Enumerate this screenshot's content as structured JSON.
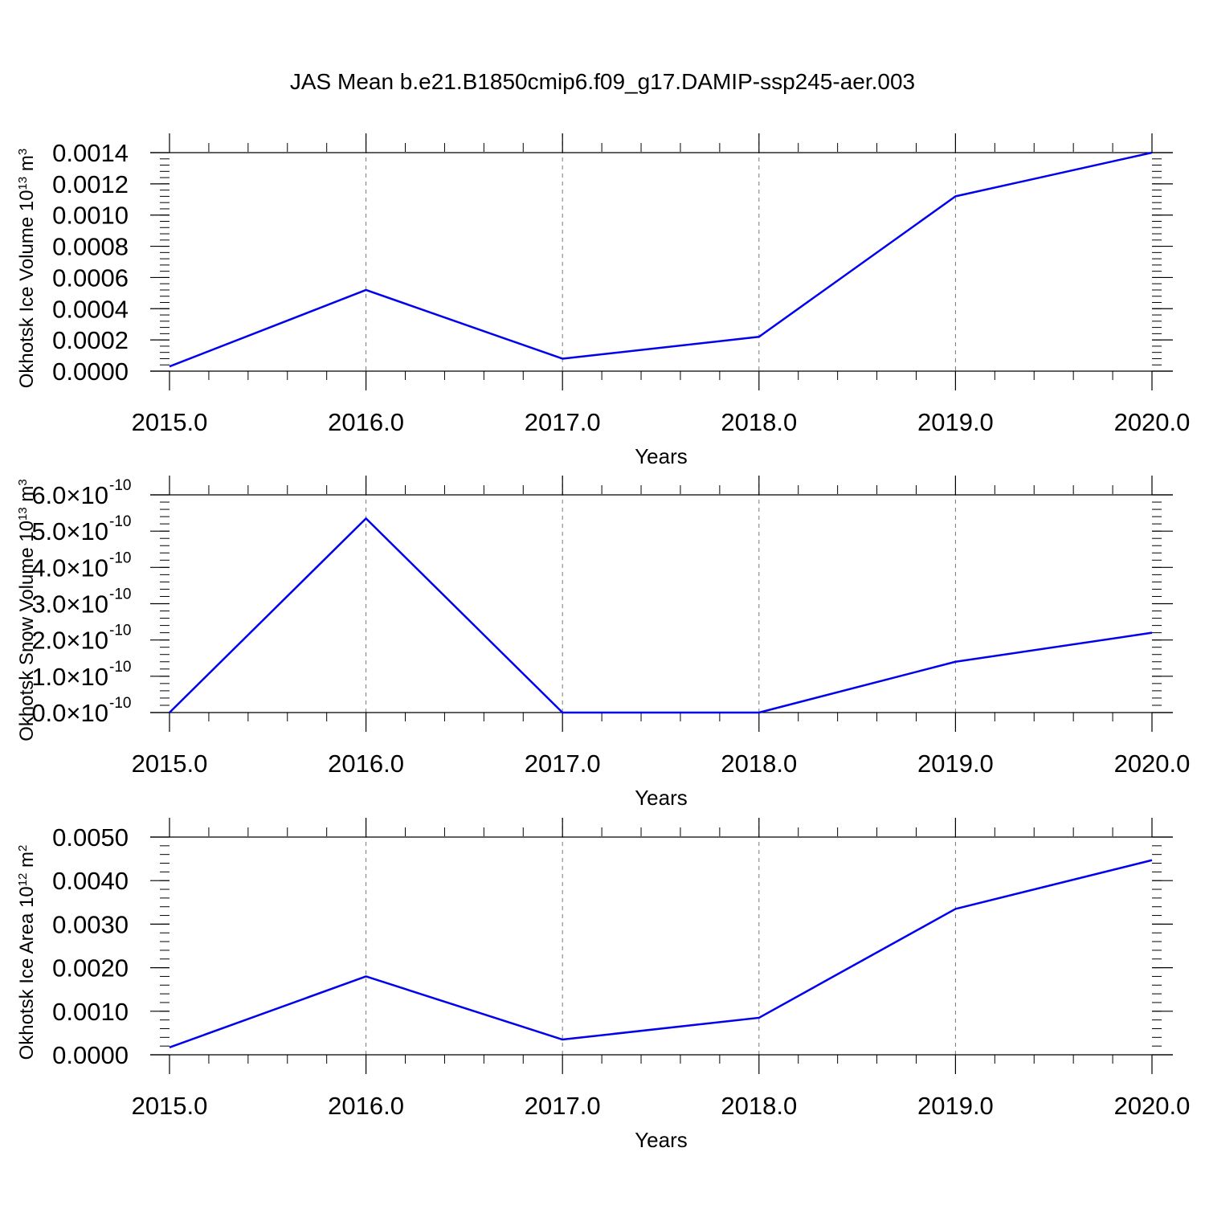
{
  "title": "JAS Mean b.e21.B1850cmip6.f09_g17.DAMIP-ssp245-aer.003",
  "chart_data": [
    {
      "type": "line",
      "xlabel": "Years",
      "ylabel": "Okhotsk Ice Volume 10",
      "ylabel_exp": "13",
      "ylabel_unit": " m",
      "ylabel_unit_exp": "3",
      "x": [
        2015,
        2016,
        2017,
        2018,
        2019,
        2020
      ],
      "x_tick_labels": [
        "2015.0",
        "2016.0",
        "2017.0",
        "2018.0",
        "2019.0",
        "2020.0"
      ],
      "y": [
        3e-05,
        0.00052,
        8e-05,
        0.00022,
        0.00112,
        0.0014
      ],
      "xlim": [
        2015,
        2020.1
      ],
      "ylim": [
        0,
        0.0014
      ],
      "y_ticks": [
        0,
        0.0002,
        0.0004,
        0.0006,
        0.0008,
        0.001,
        0.0012,
        0.0014
      ],
      "y_tick_labels": [
        "0.0000",
        "0.0002",
        "0.0004",
        "0.0006",
        "0.0008",
        "0.0010",
        "0.0012",
        "0.0014"
      ],
      "y_minor_step": 4e-05,
      "line_color": "#0000ee",
      "grid": "vertical dashed at years"
    },
    {
      "type": "line",
      "xlabel": "Years",
      "ylabel": "Okhotsk Snow Volume 10",
      "ylabel_exp": "13",
      "ylabel_unit": " m",
      "ylabel_unit_exp": "3",
      "x": [
        2015,
        2016,
        2017,
        2018,
        2019,
        2020
      ],
      "x_tick_labels": [
        "2015.0",
        "2016.0",
        "2017.0",
        "2018.0",
        "2019.0",
        "2020.0"
      ],
      "y": [
        0,
        5.35e-10,
        0,
        0,
        1.4e-10,
        2.2e-10
      ],
      "xlim": [
        2015,
        2020.1
      ],
      "ylim": [
        0,
        6e-10
      ],
      "y_ticks": [
        0,
        1e-10,
        2e-10,
        3e-10,
        4e-10,
        5e-10,
        6e-10
      ],
      "y_tick_labels": [
        "0.0",
        "1.0",
        "2.0",
        "3.0",
        "4.0",
        "5.0",
        "6.0"
      ],
      "y_tick_suffix": "×10",
      "y_tick_exp": "-10",
      "y_minor_step": 2e-11,
      "line_color": "#0000ee",
      "grid": "vertical dashed at years"
    },
    {
      "type": "line",
      "xlabel": "Years",
      "ylabel": "Okhotsk Ice Area 10",
      "ylabel_exp": "12",
      "ylabel_unit": " m",
      "ylabel_unit_exp": "2",
      "x": [
        2015,
        2016,
        2017,
        2018,
        2019,
        2020
      ],
      "x_tick_labels": [
        "2015.0",
        "2016.0",
        "2017.0",
        "2018.0",
        "2019.0",
        "2020.0"
      ],
      "y": [
        0.00017,
        0.0018,
        0.00035,
        0.00085,
        0.00335,
        0.00447
      ],
      "xlim": [
        2015,
        2020.1
      ],
      "ylim": [
        0,
        0.005
      ],
      "y_ticks": [
        0,
        0.001,
        0.002,
        0.003,
        0.004,
        0.005
      ],
      "y_tick_labels": [
        "0.0000",
        "0.0010",
        "0.0020",
        "0.0030",
        "0.0040",
        "0.0050"
      ],
      "y_minor_step": 0.0002,
      "line_color": "#0000ee",
      "grid": "vertical dashed at years"
    }
  ]
}
